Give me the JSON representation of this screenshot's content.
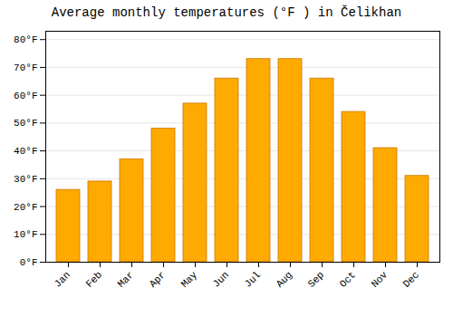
{
  "chart_data": {
    "type": "bar",
    "title": "Average monthly temperatures (°F ) in Čelikhan",
    "categories": [
      "Jan",
      "Feb",
      "Mar",
      "Apr",
      "May",
      "Jun",
      "Jul",
      "Aug",
      "Sep",
      "Oct",
      "Nov",
      "Dec"
    ],
    "values": [
      26,
      29,
      37,
      48,
      57,
      66,
      73,
      73,
      66,
      54,
      41,
      31
    ],
    "color": "#FFAA00",
    "ylim": [
      0,
      83
    ],
    "yticks": [
      {
        "value": 0,
        "label": "0°F"
      },
      {
        "value": 10,
        "label": "10°F"
      },
      {
        "value": 20,
        "label": "20°F"
      },
      {
        "value": 30,
        "label": "30°F"
      },
      {
        "value": 40,
        "label": "40°F"
      },
      {
        "value": 50,
        "label": "50°F"
      },
      {
        "value": 60,
        "label": "60°F"
      },
      {
        "value": 70,
        "label": "70°F"
      },
      {
        "value": 80,
        "label": "80°F"
      }
    ],
    "grid": true
  }
}
